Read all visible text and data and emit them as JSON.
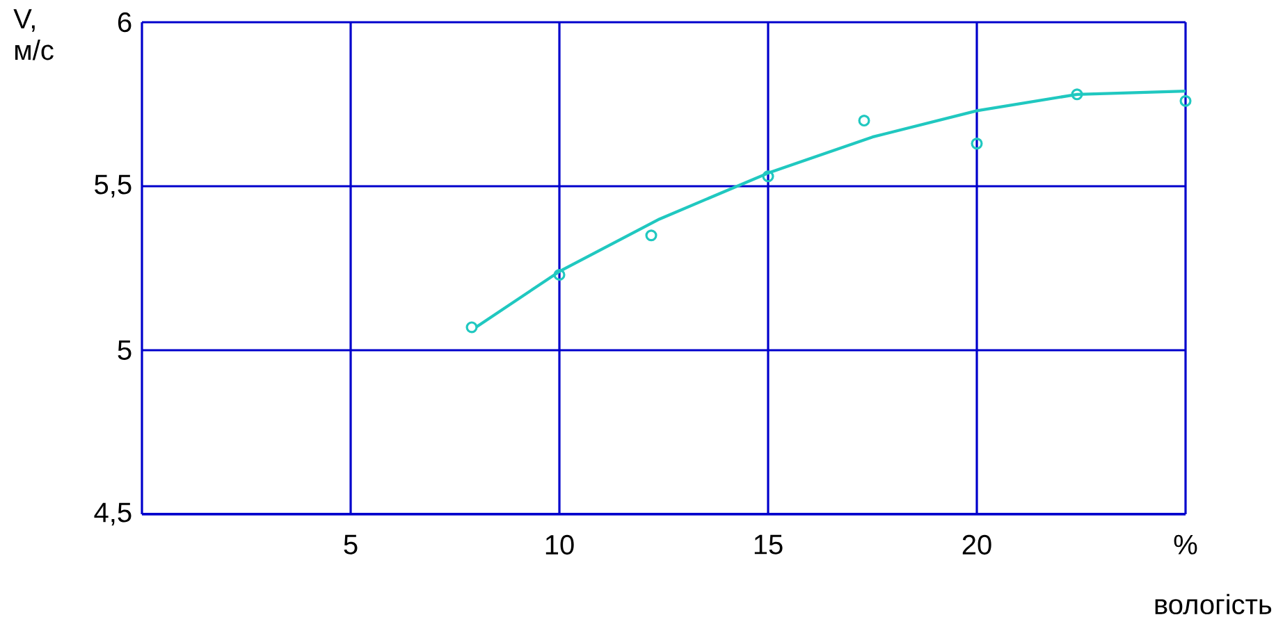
{
  "chart_data": {
    "type": "scatter",
    "xlabel": "вологість",
    "ylabel": "V, м/с",
    "xlim": [
      0,
      25
    ],
    "ylim": [
      4.5,
      6
    ],
    "xticks": [
      5,
      10,
      15,
      20,
      {
        "value": 25,
        "label": "%"
      }
    ],
    "yticks": [
      {
        "value": 4.5,
        "label": "4,5"
      },
      5,
      {
        "value": 5.5,
        "label": "5,5"
      },
      6
    ],
    "grid": true,
    "series": [
      {
        "marker": "circle",
        "color": "#20c8c0",
        "x": [
          7.9,
          10,
          12.2,
          15,
          17.3,
          20,
          22.4,
          25
        ],
        "values": [
          5.07,
          5.23,
          5.35,
          5.53,
          5.7,
          5.63,
          5.78,
          5.76
        ]
      },
      {
        "type": "line",
        "marker": "none",
        "line_style": "solid",
        "color": "#20c8c0",
        "x": [
          8,
          10,
          12.4,
          15,
          17.5,
          20,
          22.4,
          25
        ],
        "values": [
          5.07,
          5.24,
          5.4,
          5.54,
          5.65,
          5.73,
          5.78,
          5.79
        ]
      }
    ]
  }
}
